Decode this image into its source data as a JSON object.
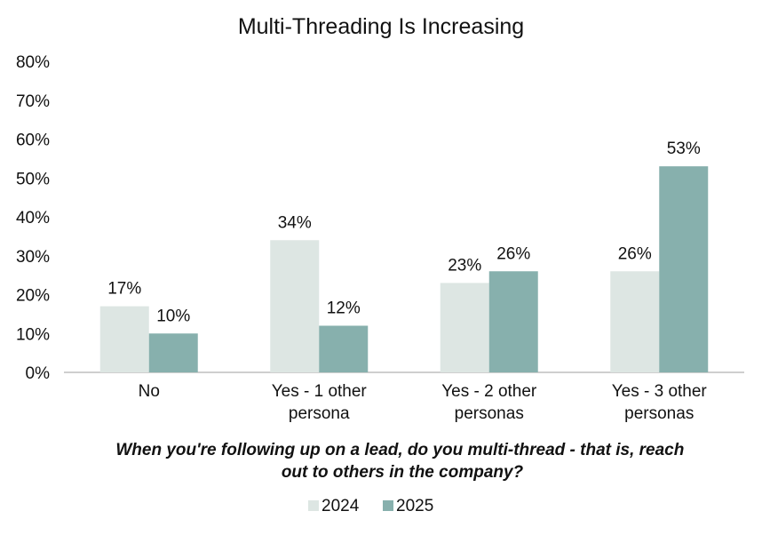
{
  "chart_data": {
    "type": "bar",
    "title": "Multi-Threading Is Increasing",
    "xlabel": [
      "When you're following up on a lead, do you multi-thread - that is, reach",
      "out to others in the company?"
    ],
    "ylabel": "",
    "ylim": [
      0,
      80
    ],
    "yticks": [
      "0%",
      "10%",
      "20%",
      "30%",
      "40%",
      "50%",
      "60%",
      "70%",
      "80%"
    ],
    "categories": [
      [
        "No"
      ],
      [
        "Yes - 1 other",
        "persona"
      ],
      [
        "Yes - 2 other",
        "personas"
      ],
      [
        "Yes - 3 other",
        "personas"
      ]
    ],
    "series": [
      {
        "name": "2024",
        "values": [
          17,
          34,
          23,
          26
        ],
        "labels": [
          "17%",
          "34%",
          "23%",
          "26%"
        ],
        "color": "#dde6e3"
      },
      {
        "name": "2025",
        "values": [
          10,
          12,
          26,
          53
        ],
        "labels": [
          "10%",
          "12%",
          "26%",
          "53%"
        ],
        "color": "#87b0ad"
      }
    ],
    "legend": "bottom",
    "grid": false
  }
}
